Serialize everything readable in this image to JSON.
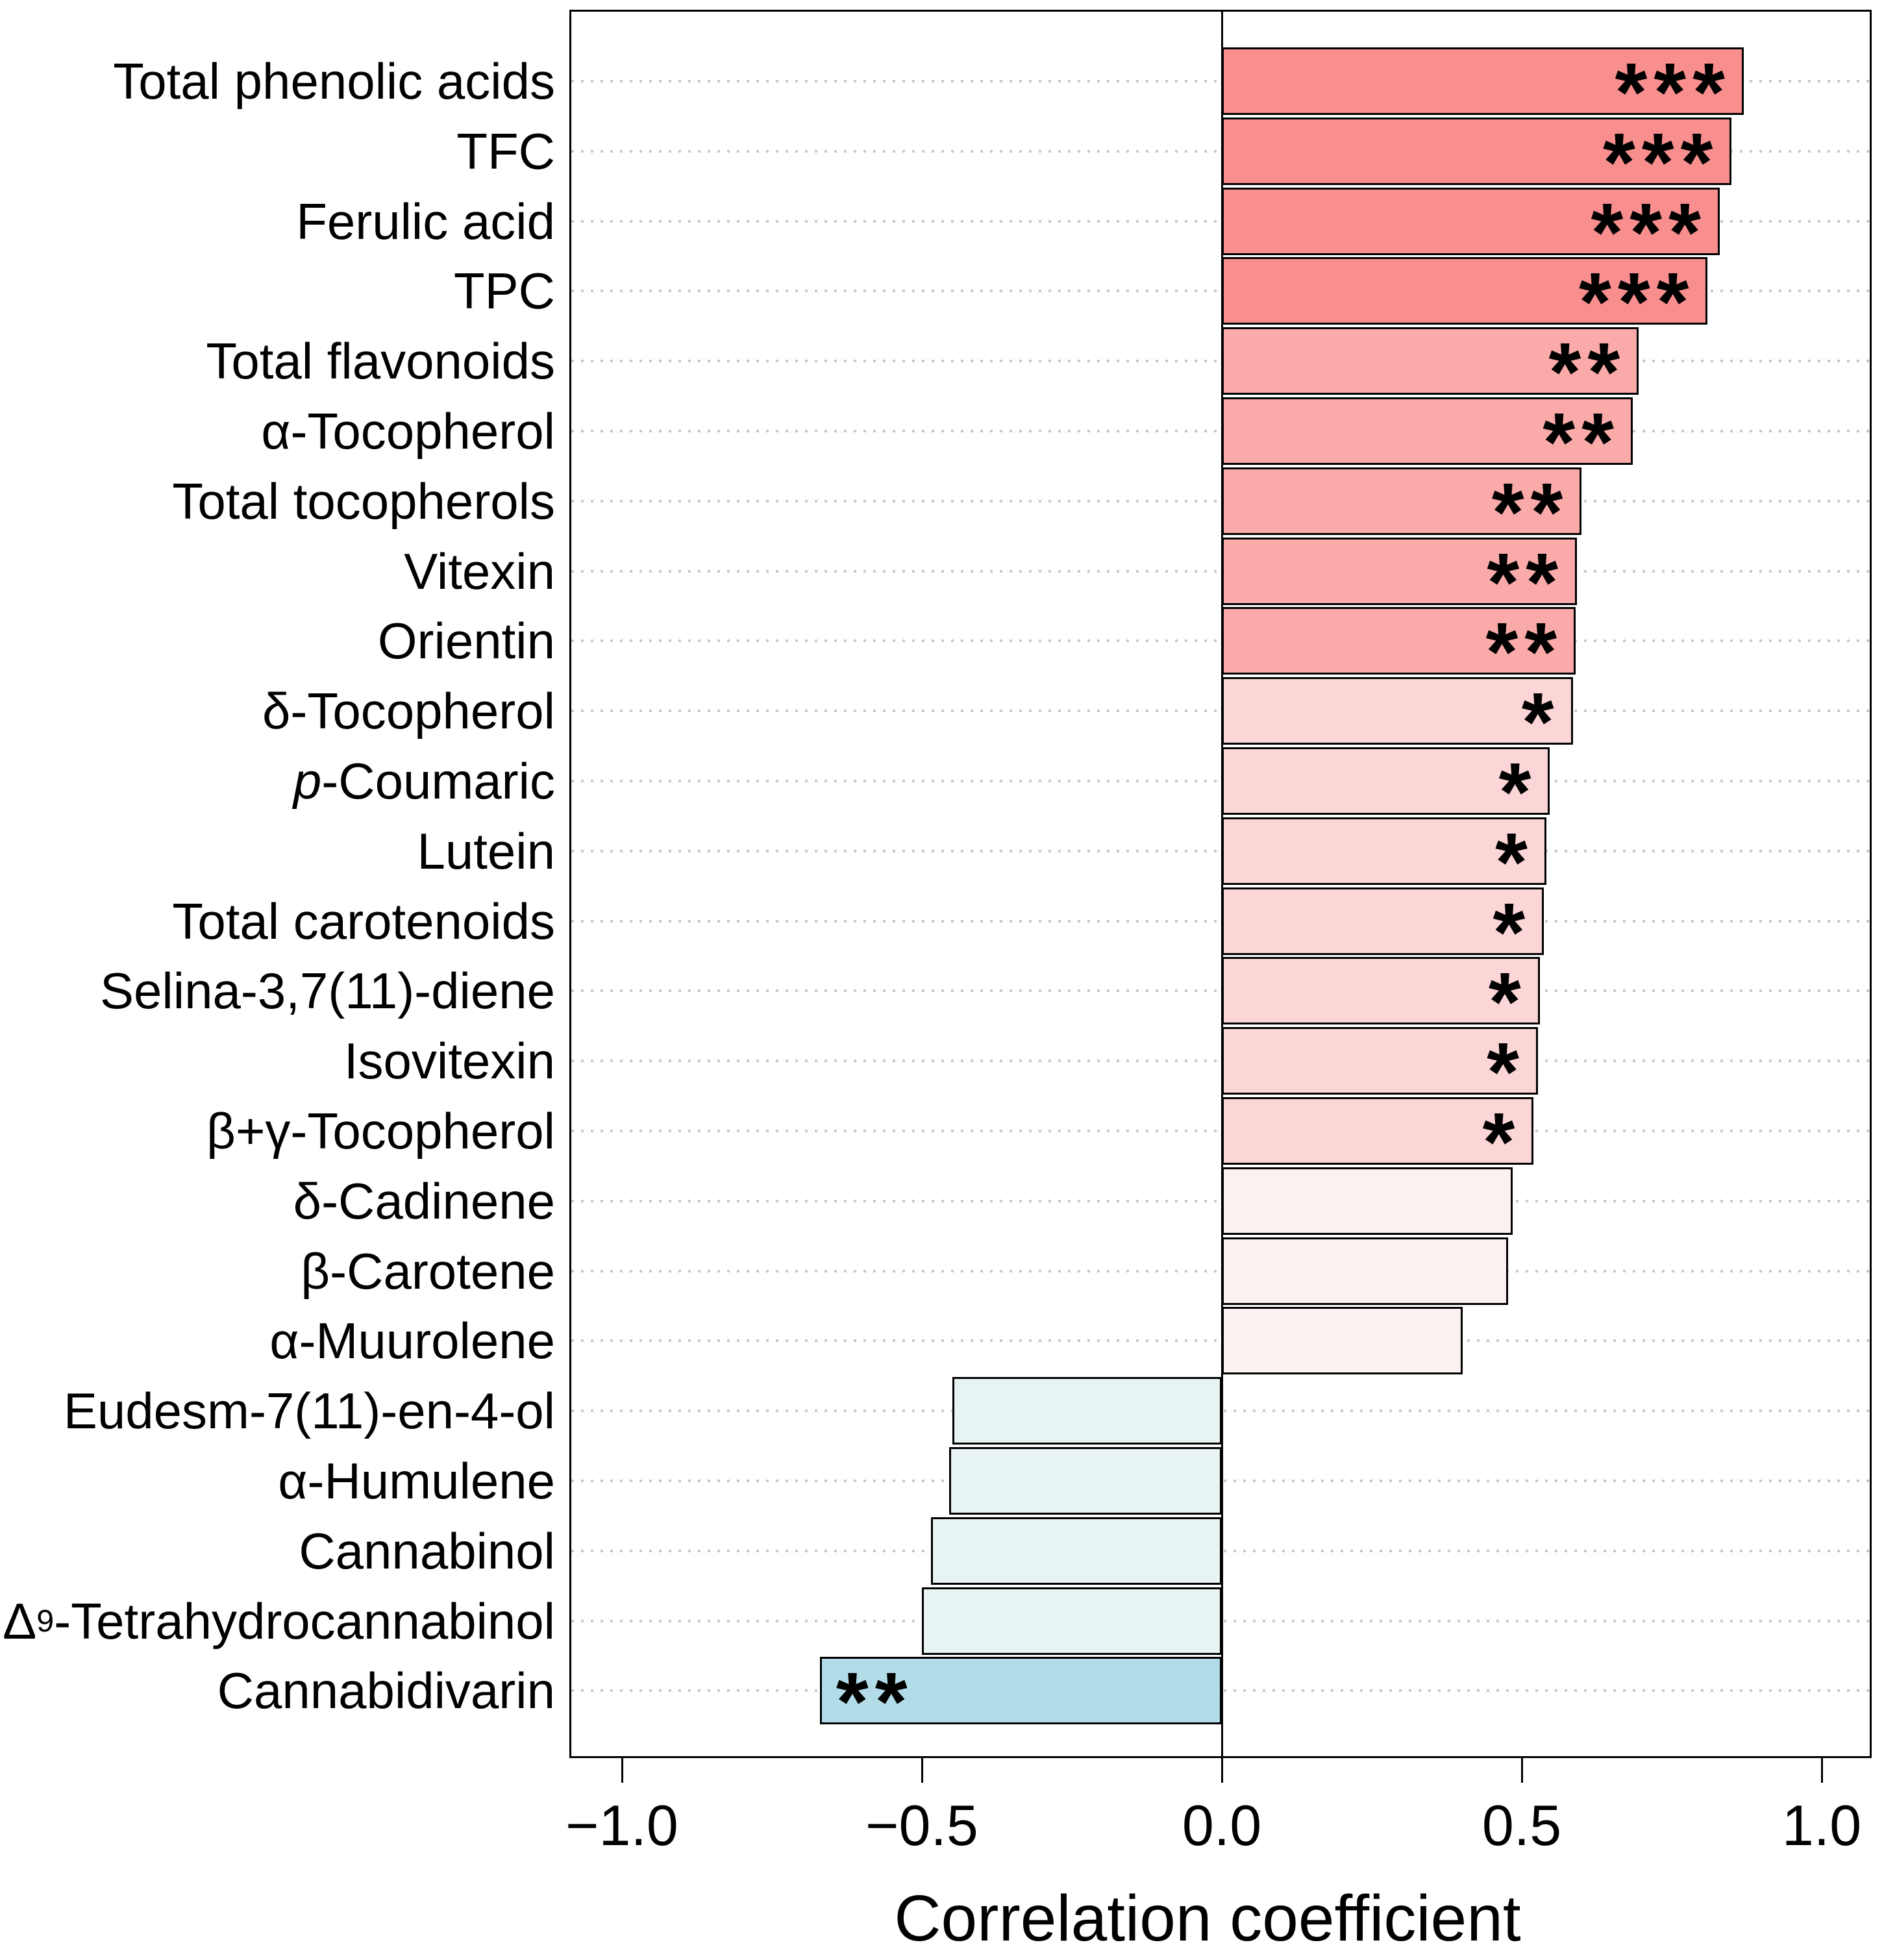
{
  "chart_data": {
    "type": "bar",
    "orientation": "horizontal",
    "title": "",
    "xlabel": "Correlation coefficient",
    "ylabel": "",
    "xlim": [
      -1.09,
      1.08
    ],
    "x_ticks": [
      -1.0,
      -0.5,
      0.0,
      0.5,
      1.0
    ],
    "x_tick_labels": [
      "−1.0",
      "−0.5",
      "0.0",
      "0.5",
      "1.0"
    ],
    "grid": "horizontal dotted line per category",
    "legend": "none",
    "bar_border_color": "#000000",
    "gridline_color": "#c9c9c9",
    "bars": [
      {
        "label": "Total phenolic acids",
        "value": 0.87,
        "significance": "***",
        "fill": "#F98E8E"
      },
      {
        "label": "TFC",
        "value": 0.85,
        "significance": "***",
        "fill": "#F98E8E"
      },
      {
        "label": "Ferulic acid",
        "value": 0.83,
        "significance": "***",
        "fill": "#F98E8E"
      },
      {
        "label": "TPC",
        "value": 0.81,
        "significance": "***",
        "fill": "#F98E8E"
      },
      {
        "label": "Total flavonoids",
        "value": 0.695,
        "significance": "**",
        "fill": "#FBAAAA"
      },
      {
        "label": "α-Tocopherol",
        "value": 0.685,
        "significance": "**",
        "fill": "#FBAAAA"
      },
      {
        "label": "Total tocopherols",
        "value": 0.6,
        "significance": "**",
        "fill": "#FBAAAA"
      },
      {
        "label": "Vitexin",
        "value": 0.592,
        "significance": "**",
        "fill": "#FBAAAA"
      },
      {
        "label": "Orientin",
        "value": 0.59,
        "significance": "**",
        "fill": "#FBAAAA"
      },
      {
        "label": "δ-Tocopherol",
        "value": 0.585,
        "significance": "*",
        "fill": "#FCD6D6"
      },
      {
        "label": "p-Coumaric",
        "value": 0.547,
        "significance": "*",
        "fill": "#FCD6D6",
        "label_parts": [
          {
            "t": "p",
            "italic": true
          },
          {
            "t": "-Coumaric"
          }
        ]
      },
      {
        "label": "Lutein",
        "value": 0.541,
        "significance": "*",
        "fill": "#FCD6D6"
      },
      {
        "label": "Total carotenoids",
        "value": 0.537,
        "significance": "*",
        "fill": "#FCD6D6"
      },
      {
        "label": "Selina-3,7(11)-diene",
        "value": 0.53,
        "significance": "*",
        "fill": "#FCD6D6"
      },
      {
        "label": "Isovitexin",
        "value": 0.527,
        "significance": "*",
        "fill": "#FCD6D6"
      },
      {
        "label": "β+γ-Tocopherol",
        "value": 0.52,
        "significance": "*",
        "fill": "#FCD6D6"
      },
      {
        "label": "δ-Cadinene",
        "value": 0.485,
        "significance": "",
        "fill": "#FBF1F0"
      },
      {
        "label": "β-Carotene",
        "value": 0.477,
        "significance": "",
        "fill": "#FBF1F0"
      },
      {
        "label": "α-Muurolene",
        "value": 0.402,
        "significance": "",
        "fill": "#FBF1F0"
      },
      {
        "label": "Eudesm-7(11)-en-4-ol",
        "value": -0.449,
        "significance": "",
        "fill": "#E8F4F3"
      },
      {
        "label": "α-Humulene",
        "value": -0.455,
        "significance": "",
        "fill": "#E8F4F3"
      },
      {
        "label": "Cannabinol",
        "value": -0.485,
        "significance": "",
        "fill": "#E8F4F3"
      },
      {
        "label": "Δ9-Tetrahydrocannabinol",
        "value": -0.5,
        "significance": "",
        "fill": "#E8F4F3",
        "label_parts": [
          {
            "t": "Δ"
          },
          {
            "t": "9",
            "sup": true
          },
          {
            "t": "-Tetrahydrocannabinol"
          }
        ]
      },
      {
        "label": "Cannabidivarin",
        "value": -0.67,
        "significance": "**",
        "fill": "#B2DCE7"
      }
    ]
  }
}
